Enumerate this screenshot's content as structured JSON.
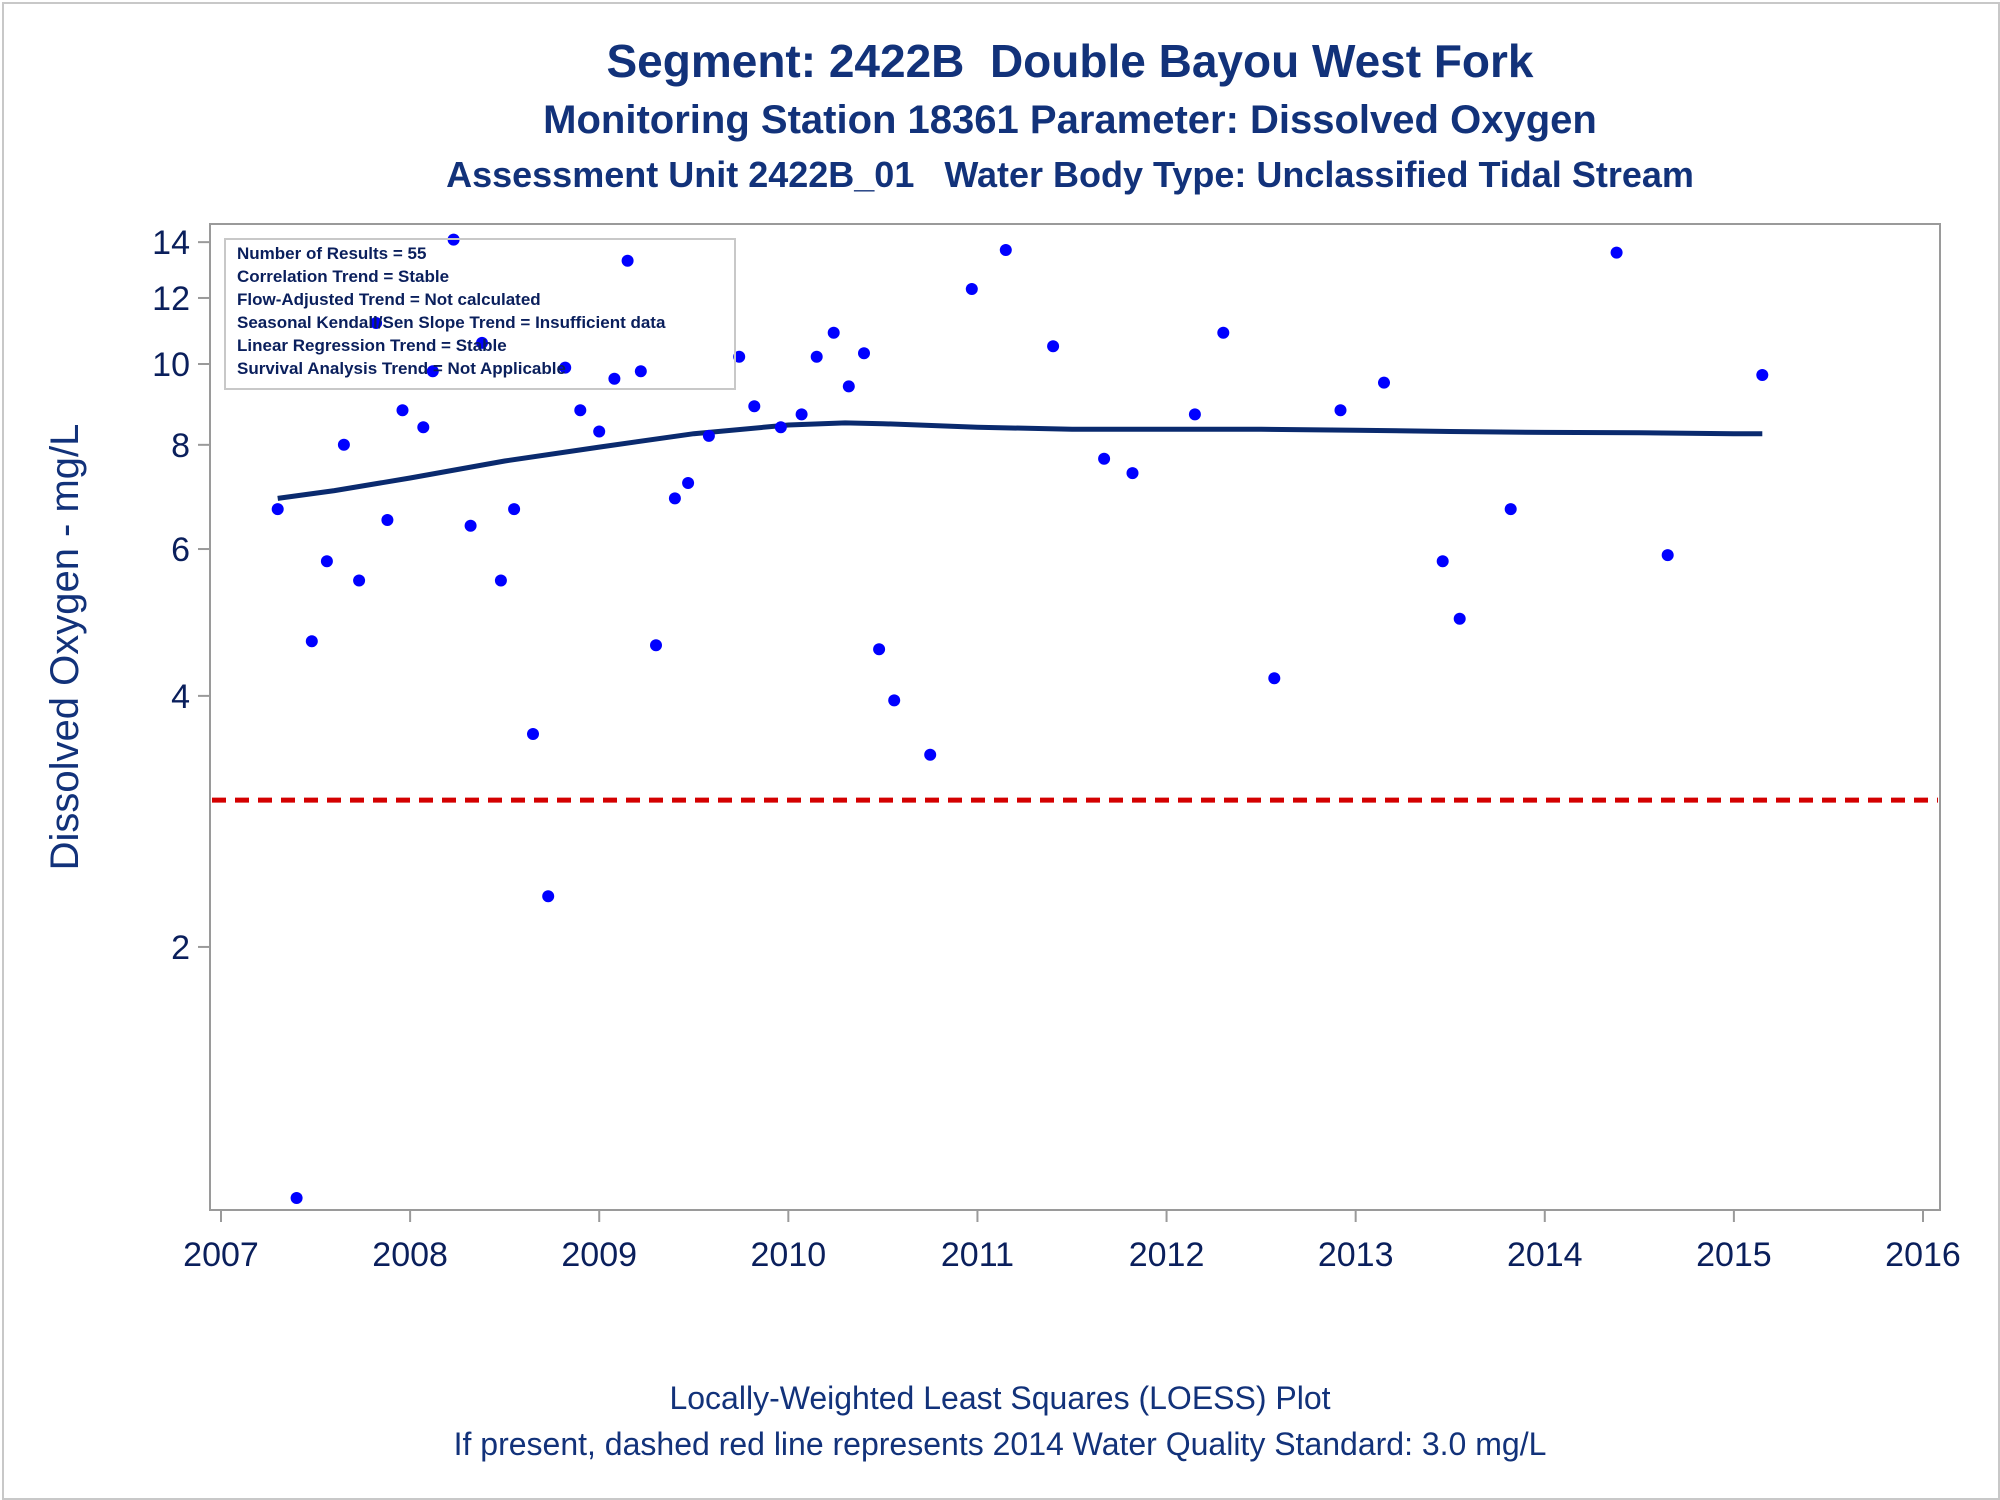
{
  "header": {
    "title": "Segment: 2422B  Double Bayou West Fork",
    "subtitle1": "Monitoring Station 18361 Parameter: Dissolved Oxygen",
    "subtitle2": "Assessment Unit 2422B_01   Water Body Type: Unclassified Tidal Stream"
  },
  "footer": {
    "line1": "Locally-Weighted Least Squares (LOESS) Plot",
    "line2": "If present, dashed red line represents 2014 Water Quality Standard: 3.0 mg/L"
  },
  "stats_box": {
    "lines": [
      "Number of Results = 55",
      "Correlation Trend = Stable",
      "Flow-Adjusted Trend = Not calculated",
      "Seasonal Kendall/Sen Slope Trend = Insufficient data",
      "Linear Regression Trend = Stable",
      "Survival Analysis Trend = Not Applicable"
    ]
  },
  "chart_data": {
    "type": "scatter",
    "title": "Segment: 2422B  Double Bayou West Fork",
    "xlabel": "",
    "ylabel": "Dissolved Oxygen - mg/L",
    "xlim": [
      2007,
      2016
    ],
    "ylim": [
      1,
      14.2
    ],
    "yscale": "log",
    "x_ticks": [
      2007,
      2008,
      2009,
      2010,
      2011,
      2012,
      2013,
      2014,
      2015,
      2016
    ],
    "y_ticks": [
      2,
      4,
      6,
      8,
      10,
      12,
      14
    ],
    "grid": false,
    "colors": {
      "points": "#0000ff",
      "loess": "#0a2a6e",
      "standard": "#d40000",
      "axis": "#9a9a9a",
      "text": "#12327a"
    },
    "series": [
      {
        "type": "scatter",
        "x": [
          2007.3,
          2007.4,
          2007.48,
          2007.56,
          2007.65,
          2007.73,
          2007.82,
          2007.88,
          2007.96,
          2008.07,
          2008.12,
          2008.23,
          2008.32,
          2008.38,
          2008.48,
          2008.55,
          2008.65,
          2008.73,
          2008.82,
          2008.9,
          2009.0,
          2009.08,
          2009.15,
          2009.22,
          2009.3,
          2009.4,
          2009.47,
          2009.58,
          2009.74,
          2009.82,
          2009.96,
          2010.07,
          2010.15,
          2010.24,
          2010.32,
          2010.4,
          2010.48,
          2010.56,
          2010.75,
          2010.97,
          2011.15,
          2011.4,
          2011.67,
          2011.82,
          2012.15,
          2012.3,
          2012.57,
          2012.92,
          2013.15,
          2013.46,
          2013.55,
          2013.82,
          2014.38,
          2014.65,
          2015.15
        ],
        "y": [
          6.7,
          1.0,
          4.65,
          5.8,
          8.0,
          5.5,
          11.2,
          6.5,
          8.8,
          8.4,
          9.8,
          14.1,
          6.4,
          10.6,
          5.5,
          6.7,
          3.6,
          2.3,
          9.9,
          8.8,
          8.3,
          9.6,
          13.3,
          9.8,
          4.6,
          6.9,
          7.2,
          8.2,
          10.2,
          8.9,
          8.4,
          8.7,
          10.2,
          10.9,
          9.4,
          10.3,
          4.55,
          3.95,
          3.4,
          12.3,
          13.7,
          10.5,
          7.7,
          7.4,
          8.7,
          10.9,
          4.2,
          8.8,
          9.5,
          5.8,
          4.95,
          6.7,
          13.6,
          5.9,
          9.7
        ]
      },
      {
        "type": "line",
        "name": "LOESS",
        "x": [
          2007.3,
          2007.6,
          2008.0,
          2008.5,
          2009.0,
          2009.5,
          2010.0,
          2010.3,
          2010.5,
          2011.0,
          2011.5,
          2012.0,
          2012.5,
          2013.0,
          2013.5,
          2014.0,
          2014.5,
          2015.0,
          2015.15
        ],
        "y": [
          6.9,
          7.05,
          7.3,
          7.65,
          7.95,
          8.25,
          8.45,
          8.5,
          8.48,
          8.4,
          8.35,
          8.35,
          8.35,
          8.33,
          8.3,
          8.28,
          8.27,
          8.25,
          8.25
        ]
      },
      {
        "type": "hline",
        "name": "2014 Water Quality Standard",
        "y": 3.0
      }
    ]
  }
}
